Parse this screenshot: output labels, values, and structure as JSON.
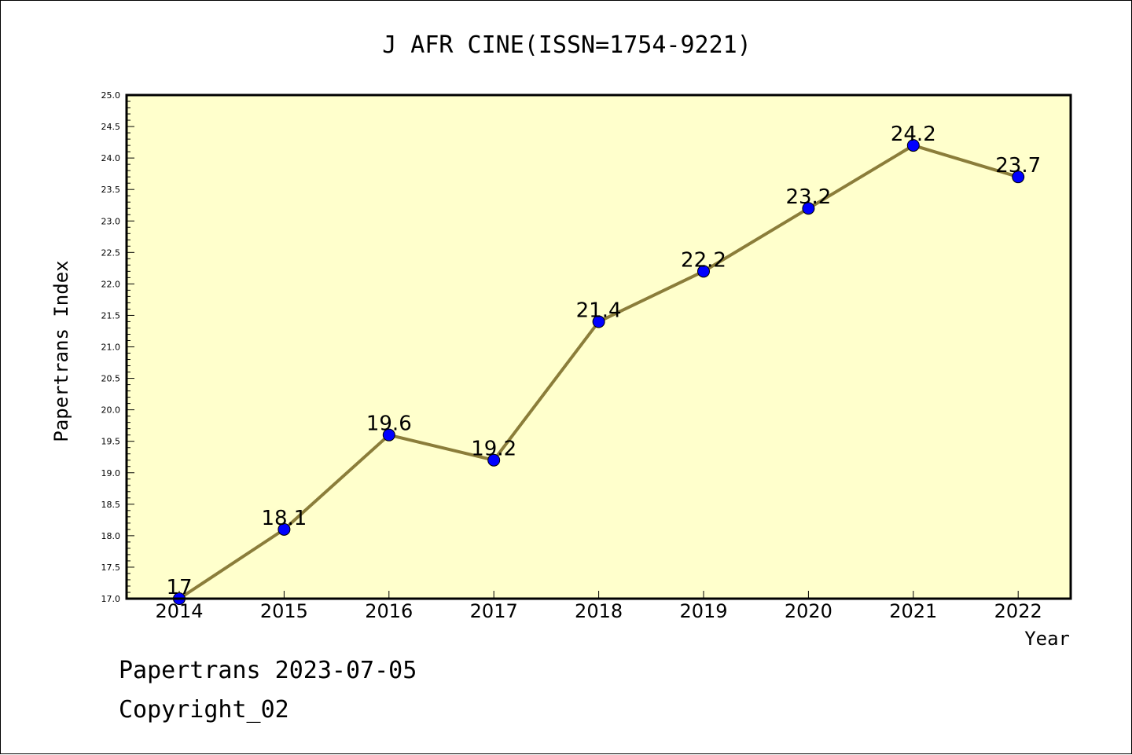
{
  "chart_data": {
    "type": "line",
    "title": "J AFR CINE(ISSN=1754-9221)",
    "xlabel": "Year",
    "ylabel": "Papertrans Index",
    "x": [
      "2014",
      "2015",
      "2016",
      "2017",
      "2018",
      "2019",
      "2020",
      "2021",
      "2022"
    ],
    "series": [
      {
        "values": [
          17,
          18.1,
          19.6,
          19.2,
          21.4,
          22.2,
          23.2,
          24.2,
          23.7
        ],
        "labels": [
          "17",
          "18.1",
          "19.6",
          "19.2",
          "21.4",
          "22.2",
          "23.2",
          "24.2",
          "23.7"
        ]
      }
    ],
    "ylim": [
      17.0,
      25.0
    ],
    "yticks": [
      "17.0",
      "17.5",
      "18.0",
      "18.5",
      "19.0",
      "19.5",
      "20.0",
      "20.5",
      "21.0",
      "21.5",
      "22.0",
      "22.5",
      "23.0",
      "23.5",
      "24.0",
      "24.5",
      "25.0"
    ],
    "grid": false,
    "colors": {
      "plot_background": "#ffffcc",
      "line": "#8b7d3a",
      "marker": "#0000ff"
    }
  },
  "footer": {
    "line1": "Papertrans 2023-07-05",
    "line2": "Copyright_02"
  }
}
